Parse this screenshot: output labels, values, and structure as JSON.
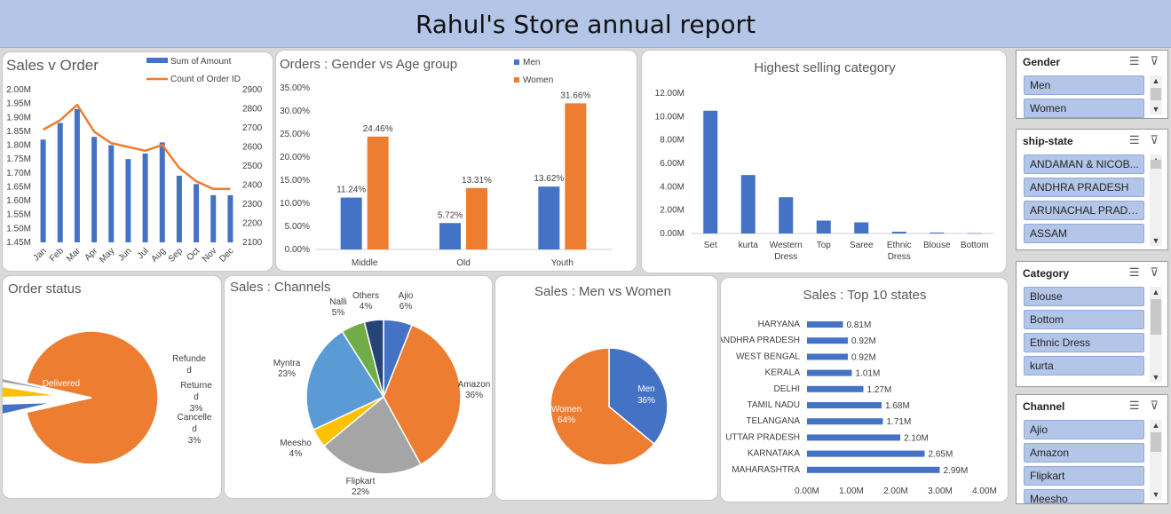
{
  "report_title": "Rahul's Store annual report",
  "chart_data": [
    {
      "id": "sales-v-order",
      "type": "bar+line",
      "title": "Sales v Order",
      "categories": [
        "Jan",
        "Feb",
        "Mar",
        "Apr",
        "May",
        "Jun",
        "Jul",
        "Aug",
        "Sep",
        "Oct",
        "Nov",
        "Dec"
      ],
      "series": [
        {
          "name": "Sum of Amount",
          "type": "bar",
          "axis": "left",
          "color": "#4472c4",
          "values": [
            1.82,
            1.88,
            1.93,
            1.83,
            1.8,
            1.75,
            1.77,
            1.81,
            1.69,
            1.66,
            1.62,
            1.62
          ]
        },
        {
          "name": "Count of Order ID",
          "type": "line",
          "axis": "right",
          "color": "#ed7d31",
          "values": [
            2690,
            2740,
            2820,
            2680,
            2620,
            2600,
            2580,
            2610,
            2490,
            2420,
            2380,
            2380
          ]
        }
      ],
      "left_ticks": [
        "1.45M",
        "1.50M",
        "1.55M",
        "1.60M",
        "1.65M",
        "1.70M",
        "1.75M",
        "1.80M",
        "1.85M",
        "1.90M",
        "1.95M",
        "2.00M"
      ],
      "ylim": [
        1.45,
        2.0
      ],
      "right_ticks": [
        "2100",
        "2200",
        "2300",
        "2400",
        "2500",
        "2600",
        "2700",
        "2800",
        "2900"
      ],
      "ylim_right": [
        2100,
        2900
      ]
    },
    {
      "id": "gender-age",
      "type": "bar",
      "title": "Orders : Gender vs Age group",
      "categories": [
        "Middle",
        "Old",
        "Youth"
      ],
      "series": [
        {
          "name": "Men",
          "color": "#4472c4",
          "values": [
            11.24,
            5.72,
            13.62
          ],
          "labels": [
            "11.24%",
            "5.72%",
            "13.62%"
          ]
        },
        {
          "name": "Women",
          "color": "#ed7d31",
          "values": [
            24.46,
            13.31,
            31.66
          ],
          "labels": [
            "24.46%",
            "13.31%",
            "31.66%"
          ]
        }
      ],
      "y_ticks": [
        "0.00%",
        "5.00%",
        "10.00%",
        "15.00%",
        "20.00%",
        "25.00%",
        "30.00%",
        "35.00%"
      ],
      "ylim": [
        0,
        35
      ]
    },
    {
      "id": "category",
      "type": "bar",
      "title": "Highest selling category",
      "categories": [
        "Set",
        "kurta",
        "Western Dress",
        "Top",
        "Saree",
        "Ethnic Dress",
        "Blouse",
        "Bottom"
      ],
      "values": [
        10.5,
        5.0,
        3.1,
        1.1,
        0.95,
        0.15,
        0.08,
        0.02
      ],
      "color": "#4472c4",
      "y_ticks": [
        "0.00M",
        "2.00M",
        "4.00M",
        "6.00M",
        "8.00M",
        "10.00M",
        "12.00M"
      ],
      "ylim": [
        0,
        12
      ]
    },
    {
      "id": "order-status",
      "type": "pie",
      "title": "Order status",
      "slices": [
        {
          "name": "Delivered",
          "value": 92,
          "pct": "92%",
          "color": "#ed7d31"
        },
        {
          "name": "Refunded",
          "value": 1,
          "pct": "",
          "color": "#a5a5a5"
        },
        {
          "name": "Returned",
          "value": 3,
          "pct": "3%",
          "color": "#ffc000"
        },
        {
          "name": "Cancelled",
          "value": 3,
          "pct": "3%",
          "color": "#4472c4"
        }
      ]
    },
    {
      "id": "channels",
      "type": "pie",
      "title": "Sales : Channels",
      "slices": [
        {
          "name": "Ajio",
          "value": 6,
          "pct": "6%",
          "color": "#4472c4"
        },
        {
          "name": "Amazon",
          "value": 36,
          "pct": "36%",
          "color": "#ed7d31"
        },
        {
          "name": "Flipkart",
          "value": 22,
          "pct": "22%",
          "color": "#a5a5a5"
        },
        {
          "name": "Meesho",
          "value": 4,
          "pct": "4%",
          "color": "#ffc000"
        },
        {
          "name": "Myntra",
          "value": 23,
          "pct": "23%",
          "color": "#5b9bd5"
        },
        {
          "name": "Nalli",
          "value": 5,
          "pct": "5%",
          "color": "#70ad47"
        },
        {
          "name": "Others",
          "value": 4,
          "pct": "4%",
          "color": "#264478"
        }
      ]
    },
    {
      "id": "men-women",
      "type": "pie",
      "title": "Sales : Men vs Women",
      "slices": [
        {
          "name": "Men",
          "value": 36,
          "pct": "36%",
          "color": "#4472c4"
        },
        {
          "name": "Women",
          "value": 64,
          "pct": "64%",
          "color": "#ed7d31"
        }
      ]
    },
    {
      "id": "top-states",
      "type": "bar-horizontal",
      "title": "Sales : Top 10 states",
      "categories": [
        "HARYANA",
        "ANDHRA PRADESH",
        "WEST BENGAL",
        "KERALA",
        "DELHI",
        "TAMIL NADU",
        "TELANGANA",
        "UTTAR PRADESH",
        "KARNATAKA",
        "MAHARASHTRA"
      ],
      "values": [
        0.81,
        0.92,
        0.92,
        1.01,
        1.27,
        1.68,
        1.71,
        2.1,
        2.65,
        2.99
      ],
      "labels": [
        "0.81M",
        "0.92M",
        "0.92M",
        "1.01M",
        "1.27M",
        "1.68M",
        "1.71M",
        "2.10M",
        "2.65M",
        "2.99M"
      ],
      "color": "#4472c4",
      "x_ticks": [
        "0.00M",
        "1.00M",
        "2.00M",
        "3.00M",
        "4.00M"
      ],
      "xlim": [
        0,
        4
      ]
    }
  ],
  "slicers": [
    {
      "title": "Gender",
      "items": [
        "Men",
        "Women"
      ]
    },
    {
      "title": "ship-state",
      "items": [
        "ANDAMAN & NICOB...",
        "ANDHRA PRADESH",
        "ARUNACHAL PRADESH",
        "ASSAM"
      ]
    },
    {
      "title": "Category",
      "items": [
        "Blouse",
        "Bottom",
        "Ethnic Dress",
        "kurta"
      ]
    },
    {
      "title": "Channel",
      "items": [
        "Ajio",
        "Amazon",
        "Flipkart",
        "Meesho"
      ]
    }
  ],
  "icons": {
    "multi_select": "multi-select-icon",
    "clear_filter": "clear-filter-icon"
  }
}
